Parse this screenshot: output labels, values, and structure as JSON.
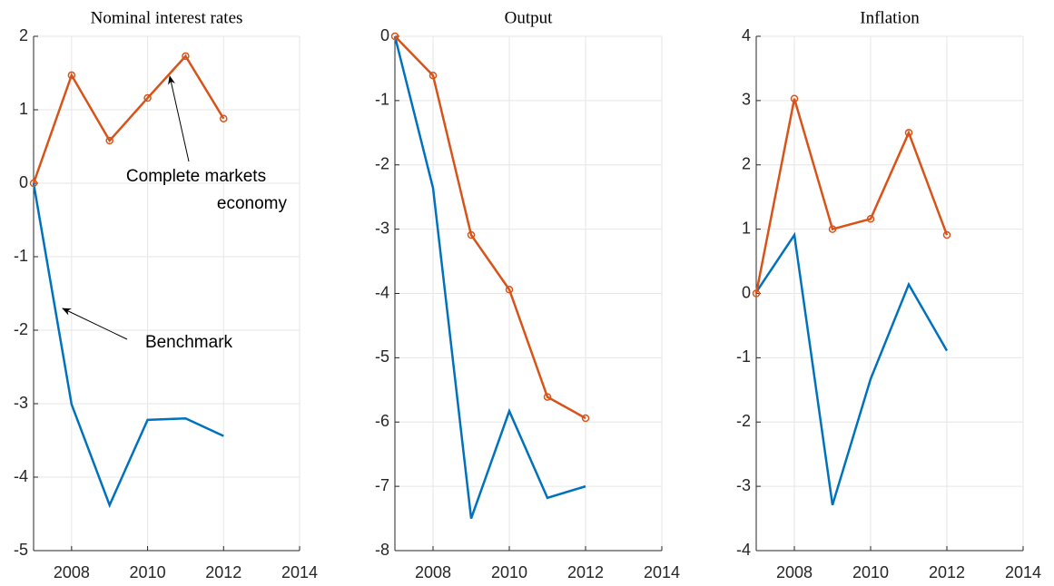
{
  "chart_data": [
    {
      "type": "line",
      "title": "Nominal interest rates",
      "x": [
        2007,
        2008,
        2009,
        2010,
        2011,
        2012
      ],
      "series": [
        {
          "color": "#0072bd",
          "values": [
            0,
            -3.01,
            -4.38,
            -3.22,
            -3.2,
            -3.44
          ]
        },
        {
          "color": "#d95319",
          "marker": "circle",
          "values": [
            0,
            1.47,
            0.58,
            1.16,
            1.73,
            0.88
          ]
        }
      ],
      "xlim": [
        2007,
        2014
      ],
      "xticks": [
        2008,
        2010,
        2012,
        2014
      ],
      "ylim": [
        -5,
        2
      ],
      "yticks": [
        -5,
        -4,
        -3,
        -2,
        -1,
        0,
        1,
        2
      ],
      "grid": true,
      "annotations": [
        {
          "lines": [
            "Complete markets",
            "economy"
          ]
        },
        {
          "lines": [
            "Benchmark"
          ]
        }
      ]
    },
    {
      "type": "line",
      "title": "Output",
      "x": [
        2007,
        2008,
        2009,
        2010,
        2011,
        2012
      ],
      "series": [
        {
          "color": "#0072bd",
          "values": [
            0,
            -2.36,
            -7.5,
            -5.83,
            -7.18,
            -7.0
          ]
        },
        {
          "color": "#d95319",
          "marker": "circle",
          "values": [
            0,
            -0.61,
            -3.09,
            -3.94,
            -5.61,
            -5.94
          ]
        }
      ],
      "xlim": [
        2007,
        2014
      ],
      "xticks": [
        2008,
        2010,
        2012,
        2014
      ],
      "ylim": [
        -8,
        0
      ],
      "yticks": [
        -8,
        -7,
        -6,
        -5,
        -4,
        -3,
        -2,
        -1,
        0
      ],
      "grid": true
    },
    {
      "type": "line",
      "title": "Inflation",
      "x": [
        2007,
        2008,
        2009,
        2010,
        2011,
        2012
      ],
      "series": [
        {
          "color": "#0072bd",
          "values": [
            0.02,
            0.91,
            -3.29,
            -1.33,
            0.14,
            -0.89
          ]
        },
        {
          "color": "#d95319",
          "marker": "circle",
          "values": [
            0,
            3.03,
            1.0,
            1.16,
            2.5,
            0.91
          ]
        }
      ],
      "xlim": [
        2007,
        2014
      ],
      "xticks": [
        2008,
        2010,
        2012,
        2014
      ],
      "ylim": [
        -4,
        4
      ],
      "yticks": [
        -4,
        -3,
        -2,
        -1,
        0,
        1,
        2,
        3,
        4
      ],
      "grid": true
    }
  ]
}
